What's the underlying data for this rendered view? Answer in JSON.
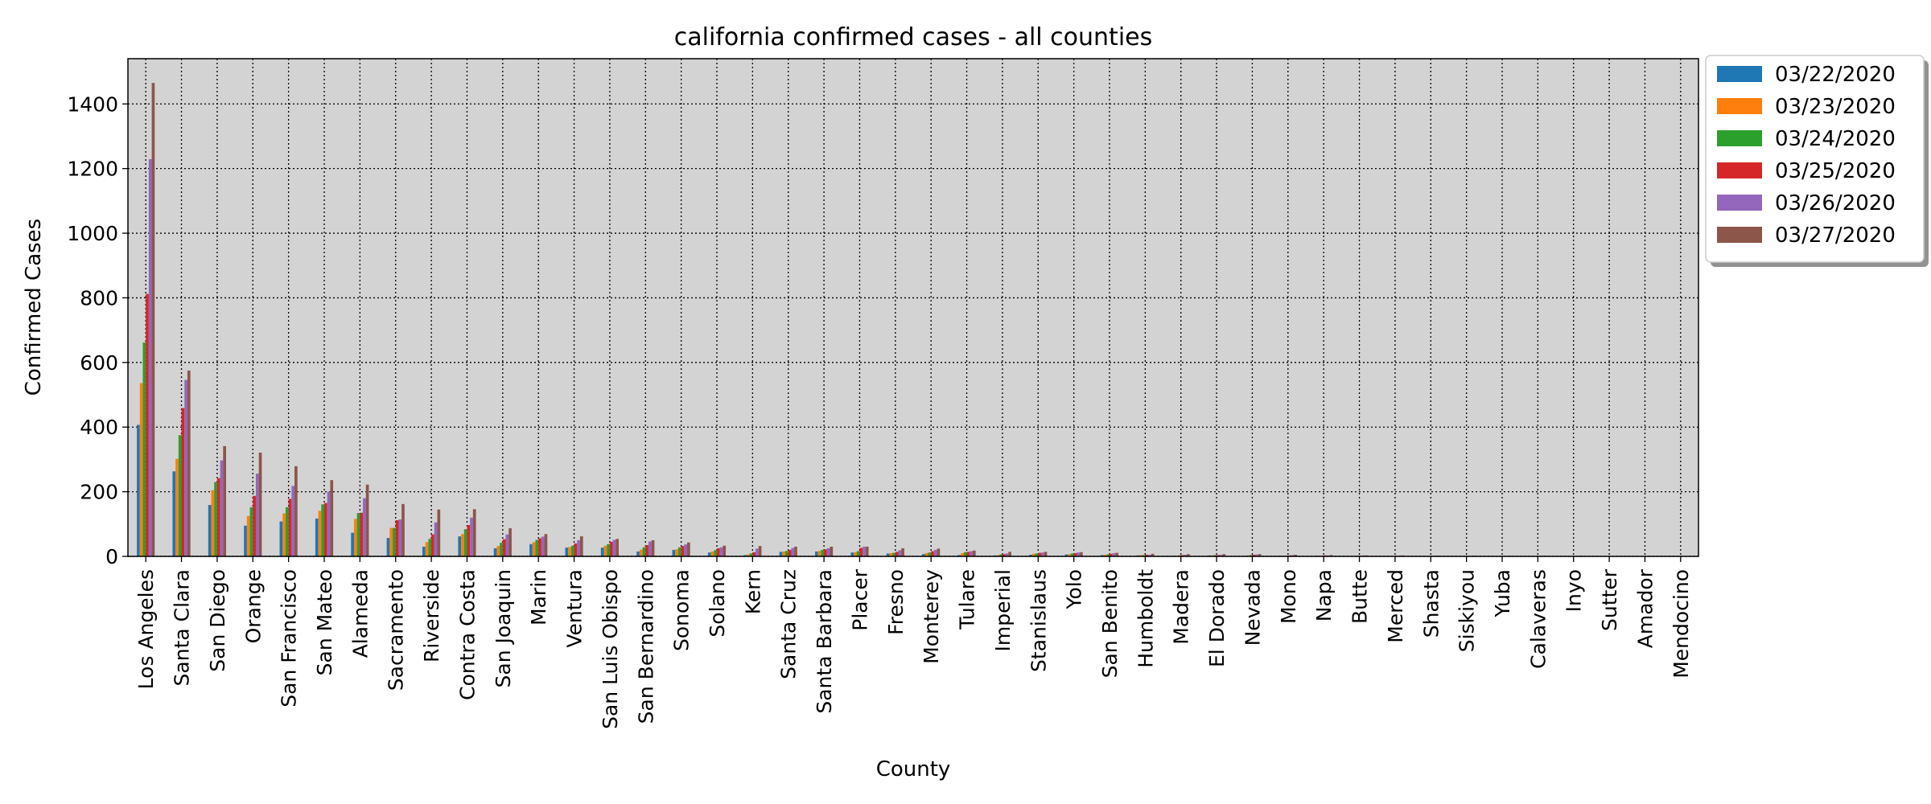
{
  "chart_data": {
    "type": "bar",
    "title": "california confirmed cases - all counties",
    "xlabel": "County",
    "ylabel": "Confirmed Cases",
    "ylim": [
      0,
      1540
    ],
    "yticks": [
      0,
      200,
      400,
      600,
      800,
      1000,
      1200,
      1400
    ],
    "grid": true,
    "grid_style": "dotted",
    "legend_position": "outside-top-right",
    "plot_background": "#d3d3d3",
    "categories": [
      "Los Angeles",
      "Santa Clara",
      "San Diego",
      "Orange",
      "San Francisco",
      "San Mateo",
      "Alameda",
      "Sacramento",
      "Riverside",
      "Contra Costa",
      "San Joaquin",
      "Marin",
      "Ventura",
      "San Luis Obispo",
      "San Bernardino",
      "Sonoma",
      "Solano",
      "Kern",
      "Santa Cruz",
      "Santa Barbara",
      "Placer",
      "Fresno",
      "Monterey",
      "Tulare",
      "Imperial",
      "Stanislaus",
      "Yolo",
      "San Benito",
      "Humboldt",
      "Madera",
      "El Dorado",
      "Nevada",
      "Mono",
      "Napa",
      "Butte",
      "Merced",
      "Shasta",
      "Siskiyou",
      "Yuba",
      "Calaveras",
      "Inyo",
      "Sutter",
      "Amador",
      "Mendocino"
    ],
    "series": [
      {
        "name": "03/22/2020",
        "color": "#1f77b4",
        "values": [
          407,
          263,
          159,
          95,
          108,
          117,
          73,
          57,
          30,
          62,
          25,
          38,
          27,
          27,
          15,
          20,
          12,
          4,
          14,
          15,
          12,
          9,
          7,
          4,
          3,
          5,
          6,
          4,
          3,
          2,
          3,
          2,
          2,
          2,
          1,
          1,
          1,
          1,
          0,
          0,
          0,
          0,
          0,
          0
        ]
      },
      {
        "name": "03/23/2020",
        "color": "#ff7f0e",
        "values": [
          536,
          302,
          205,
          125,
          133,
          141,
          116,
          88,
          44,
          69,
          32,
          44,
          29,
          33,
          21,
          22,
          15,
          6,
          15,
          17,
          13,
          10,
          10,
          10,
          4,
          8,
          7,
          5,
          4,
          2,
          3,
          3,
          2,
          2,
          1,
          1,
          1,
          1,
          0,
          0,
          0,
          0,
          0,
          0
        ]
      },
      {
        "name": "03/24/2020",
        "color": "#2ca02c",
        "values": [
          662,
          375,
          230,
          152,
          152,
          161,
          134,
          88,
          54,
          84,
          42,
          51,
          33,
          38,
          28,
          28,
          19,
          9,
          17,
          20,
          16,
          11,
          12,
          13,
          6,
          9,
          9,
          6,
          4,
          3,
          4,
          4,
          2,
          2,
          2,
          1,
          1,
          1,
          1,
          1,
          1,
          0,
          0,
          0
        ]
      },
      {
        "name": "03/25/2020",
        "color": "#d62728",
        "values": [
          812,
          459,
          242,
          187,
          178,
          165,
          135,
          112,
          68,
          97,
          53,
          56,
          40,
          45,
          35,
          32,
          25,
          13,
          20,
          22,
          26,
          14,
          16,
          14,
          7,
          11,
          10,
          8,
          5,
          4,
          4,
          5,
          3,
          3,
          2,
          2,
          1,
          1,
          1,
          1,
          1,
          1,
          0,
          0
        ]
      },
      {
        "name": "03/26/2020",
        "color": "#9467bd",
        "values": [
          1229,
          546,
          297,
          256,
          218,
          200,
          180,
          114,
          105,
          120,
          68,
          61,
          50,
          51,
          46,
          37,
          28,
          24,
          26,
          25,
          30,
          19,
          20,
          16,
          9,
          12,
          12,
          10,
          5,
          5,
          5,
          6,
          4,
          3,
          3,
          2,
          2,
          1,
          1,
          2,
          1,
          1,
          1,
          0
        ]
      },
      {
        "name": "03/27/2020",
        "color": "#8c564b",
        "values": [
          1465,
          575,
          341,
          321,
          279,
          236,
          222,
          162,
          145,
          146,
          87,
          69,
          62,
          54,
          50,
          43,
          33,
          32,
          30,
          30,
          30,
          25,
          24,
          18,
          14,
          14,
          13,
          11,
          8,
          7,
          7,
          7,
          5,
          4,
          3,
          3,
          2,
          2,
          2,
          2,
          2,
          1,
          1,
          1
        ]
      }
    ]
  }
}
